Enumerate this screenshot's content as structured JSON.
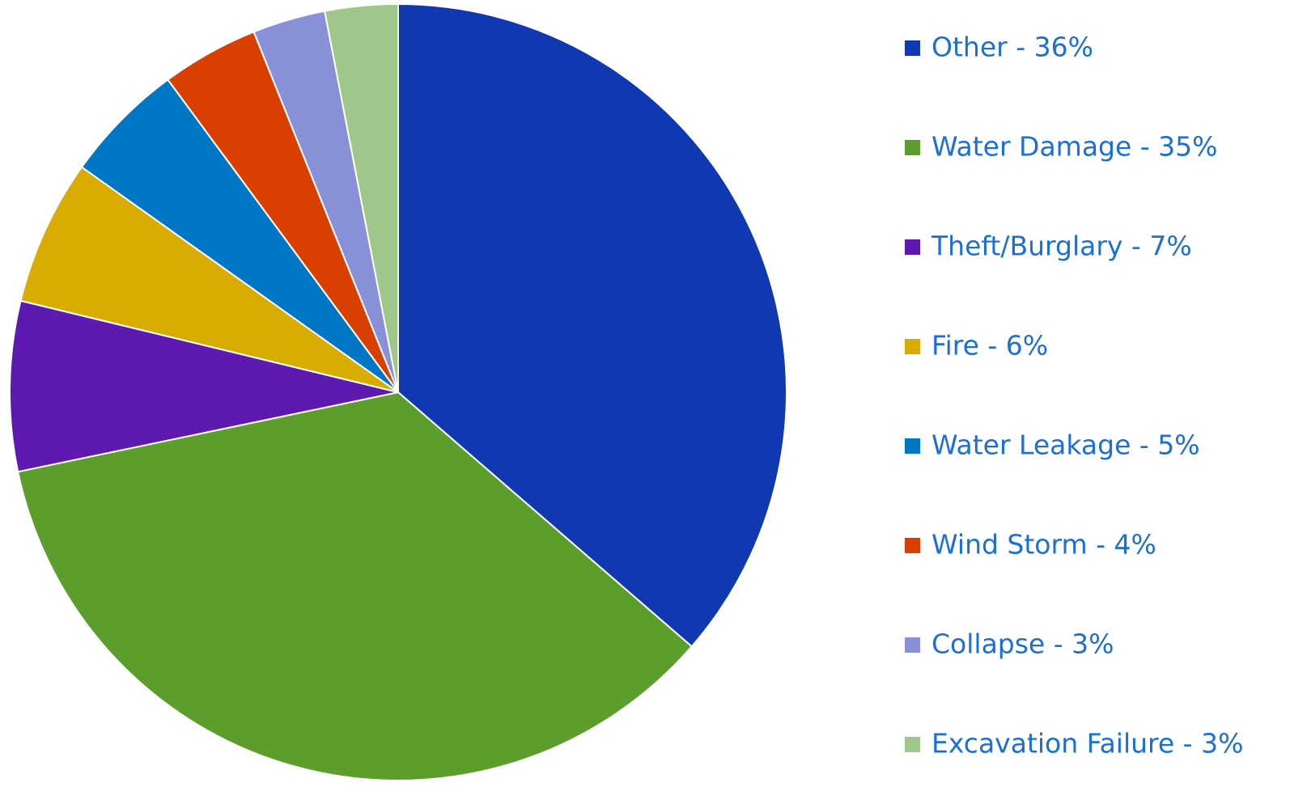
{
  "chart_data": {
    "type": "pie",
    "categories": [
      "Other - 36%",
      "Water Damage - 35%",
      "Theft/Burglary - 7%",
      "Fire - 6%",
      "Water Leakage - 5%",
      "Wind Storm - 4%",
      "Collapse - 3%",
      "Excavation Failure - 3%"
    ],
    "values": [
      36,
      35,
      7,
      6,
      5,
      4,
      3,
      3
    ],
    "colors": [
      "#1038b0",
      "#5c9e2c",
      "#5e1ab0",
      "#d8ac00",
      "#0077c4",
      "#d94000",
      "#8890d8",
      "#9fc78a"
    ],
    "legend": "right"
  }
}
